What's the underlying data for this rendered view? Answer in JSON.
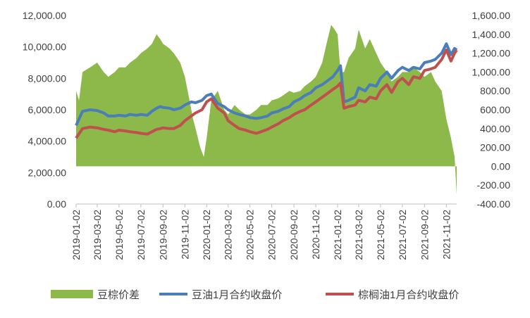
{
  "chart_data": {
    "type": "line",
    "title": "",
    "xlabel": "",
    "ylabel": "",
    "legend_position": "bottom",
    "grid": false,
    "x_tick_labels": [
      "2019-01-02",
      "2019-03-02",
      "2019-05-02",
      "2019-07-02",
      "2019-09-02",
      "2019-11-02",
      "2020-01-02",
      "2020-03-02",
      "2020-05-02",
      "2020-07-02",
      "2020-09-02",
      "2020-11-02",
      "2021-01-02",
      "2021-03-02",
      "2021-05-02",
      "2021-07-02",
      "2021-09-02",
      "2021-11-02"
    ],
    "y_left": {
      "ticks": [
        "0.00",
        "2,000.00",
        "4,000.00",
        "6,000.00",
        "8,000.00",
        "10,000.00",
        "12,000.00"
      ],
      "min": 0,
      "max": 12000
    },
    "y_right": {
      "ticks": [
        "-400.00",
        "-200.00",
        "0.00",
        "200.00",
        "400.00",
        "600.00",
        "800.00",
        "1,000.00",
        "1,200.00",
        "1,400.00",
        "1,600.00"
      ],
      "min": -400,
      "max": 1600
    },
    "series": [
      {
        "name": "豆棕价差",
        "type": "area",
        "axis": "right",
        "color": "#8DB84A",
        "x": [
          "2019-01-02",
          "2019-01-10",
          "2019-01-20",
          "2019-02-10",
          "2019-03-02",
          "2019-03-20",
          "2019-04-02",
          "2019-04-20",
          "2019-05-02",
          "2019-05-20",
          "2019-06-02",
          "2019-06-20",
          "2019-07-02",
          "2019-07-20",
          "2019-08-02",
          "2019-08-15",
          "2019-08-25",
          "2019-09-02",
          "2019-09-20",
          "2019-10-02",
          "2019-10-20",
          "2019-11-02",
          "2019-11-15",
          "2019-11-25",
          "2019-12-02",
          "2019-12-15",
          "2019-12-25",
          "2020-01-02",
          "2020-01-15",
          "2020-02-02",
          "2020-02-20",
          "2020-03-02",
          "2020-03-20",
          "2020-04-02",
          "2020-04-20",
          "2020-05-02",
          "2020-05-20",
          "2020-06-02",
          "2020-06-20",
          "2020-07-02",
          "2020-07-20",
          "2020-08-02",
          "2020-08-20",
          "2020-09-02",
          "2020-09-20",
          "2020-10-02",
          "2020-10-20",
          "2020-11-02",
          "2020-11-20",
          "2020-12-02",
          "2020-12-15",
          "2020-12-25",
          "2021-01-02",
          "2021-01-10",
          "2021-01-20",
          "2021-02-02",
          "2021-02-20",
          "2021-03-02",
          "2021-03-20",
          "2021-04-02",
          "2021-04-20",
          "2021-05-02",
          "2021-05-20",
          "2021-06-02",
          "2021-06-20",
          "2021-07-02",
          "2021-07-20",
          "2021-08-02",
          "2021-08-20",
          "2021-09-02",
          "2021-09-20",
          "2021-10-02",
          "2021-10-20",
          "2021-11-02",
          "2021-11-15",
          "2021-11-25",
          "2021-12-01"
        ],
        "values": [
          800,
          700,
          1000,
          1050,
          1100,
          1000,
          950,
          1000,
          1050,
          1050,
          1100,
          1150,
          1200,
          1250,
          1300,
          1400,
          1350,
          1300,
          1250,
          1200,
          1100,
          950,
          700,
          500,
          400,
          200,
          100,
          300,
          700,
          800,
          600,
          550,
          650,
          600,
          550,
          550,
          600,
          650,
          650,
          700,
          720,
          750,
          800,
          780,
          800,
          850,
          900,
          950,
          1100,
          1300,
          1500,
          1450,
          1400,
          1000,
          1000,
          1150,
          1250,
          1450,
          1250,
          1350,
          1200,
          1100,
          1000,
          900,
          950,
          1000,
          1000,
          1050,
          1000,
          950,
          1000,
          900,
          800,
          500,
          300,
          100,
          -300
        ]
      },
      {
        "name": "豆油1月合约收盘价",
        "type": "line",
        "axis": "left",
        "color": "#4A7EBB",
        "x": [
          "2019-01-02",
          "2019-01-20",
          "2019-02-10",
          "2019-03-02",
          "2019-03-20",
          "2019-04-02",
          "2019-04-20",
          "2019-05-02",
          "2019-05-20",
          "2019-06-02",
          "2019-06-20",
          "2019-07-02",
          "2019-07-20",
          "2019-08-02",
          "2019-08-15",
          "2019-08-25",
          "2019-09-02",
          "2019-09-20",
          "2019-10-02",
          "2019-10-20",
          "2019-11-02",
          "2019-11-20",
          "2019-12-02",
          "2019-12-20",
          "2020-01-02",
          "2020-01-15",
          "2020-02-02",
          "2020-02-20",
          "2020-03-02",
          "2020-03-20",
          "2020-04-02",
          "2020-04-20",
          "2020-05-02",
          "2020-05-20",
          "2020-06-02",
          "2020-06-20",
          "2020-07-02",
          "2020-07-20",
          "2020-08-02",
          "2020-08-20",
          "2020-09-02",
          "2020-09-20",
          "2020-10-02",
          "2020-10-20",
          "2020-11-02",
          "2020-11-20",
          "2020-12-02",
          "2020-12-20",
          "2021-01-02",
          "2021-01-10",
          "2021-01-20",
          "2021-02-02",
          "2021-02-20",
          "2021-03-02",
          "2021-03-20",
          "2021-04-02",
          "2021-04-20",
          "2021-05-02",
          "2021-05-20",
          "2021-06-02",
          "2021-06-20",
          "2021-07-02",
          "2021-07-20",
          "2021-08-02",
          "2021-08-20",
          "2021-09-02",
          "2021-09-20",
          "2021-10-02",
          "2021-10-20",
          "2021-11-02",
          "2021-11-15",
          "2021-11-25",
          "2021-12-01"
        ],
        "values": [
          5000,
          5900,
          6000,
          5950,
          5800,
          5600,
          5600,
          5650,
          5600,
          5700,
          5650,
          5700,
          5650,
          5900,
          6100,
          6200,
          6150,
          6100,
          6000,
          6100,
          6300,
          6500,
          6450,
          6600,
          6900,
          7000,
          6400,
          6200,
          6000,
          5800,
          5700,
          5600,
          5500,
          5450,
          5500,
          5600,
          5800,
          5900,
          6050,
          6200,
          6500,
          6700,
          6900,
          7100,
          7400,
          7600,
          7800,
          8100,
          8500,
          8800,
          6500,
          6600,
          6800,
          7400,
          7200,
          7600,
          7500,
          8000,
          8400,
          8000,
          8500,
          8700,
          8500,
          8700,
          8600,
          9000,
          9100,
          9200,
          9600,
          10200,
          9500,
          9900,
          9800
        ]
      },
      {
        "name": "棕榈油1月合约收盘价",
        "type": "line",
        "axis": "left",
        "color": "#C0504D",
        "x": [
          "2019-01-02",
          "2019-01-20",
          "2019-02-10",
          "2019-03-02",
          "2019-03-20",
          "2019-04-02",
          "2019-04-20",
          "2019-05-02",
          "2019-05-20",
          "2019-06-02",
          "2019-06-20",
          "2019-07-02",
          "2019-07-20",
          "2019-08-02",
          "2019-08-15",
          "2019-08-25",
          "2019-09-02",
          "2019-09-20",
          "2019-10-02",
          "2019-10-20",
          "2019-11-02",
          "2019-11-20",
          "2019-12-02",
          "2019-12-20",
          "2020-01-02",
          "2020-01-15",
          "2020-02-02",
          "2020-02-20",
          "2020-03-02",
          "2020-03-20",
          "2020-04-02",
          "2020-04-20",
          "2020-05-02",
          "2020-05-20",
          "2020-06-02",
          "2020-06-20",
          "2020-07-02",
          "2020-07-20",
          "2020-08-02",
          "2020-08-20",
          "2020-09-02",
          "2020-09-20",
          "2020-10-02",
          "2020-10-20",
          "2020-11-02",
          "2020-11-20",
          "2020-12-02",
          "2020-12-20",
          "2021-01-02",
          "2021-01-10",
          "2021-01-20",
          "2021-02-02",
          "2021-02-20",
          "2021-03-02",
          "2021-03-20",
          "2021-04-02",
          "2021-04-20",
          "2021-05-02",
          "2021-05-20",
          "2021-06-02",
          "2021-06-20",
          "2021-07-02",
          "2021-07-20",
          "2021-08-02",
          "2021-08-20",
          "2021-09-02",
          "2021-09-20",
          "2021-10-02",
          "2021-10-20",
          "2021-11-02",
          "2021-11-15",
          "2021-11-25",
          "2021-12-01"
        ],
        "values": [
          4200,
          4800,
          4900,
          4850,
          4750,
          4700,
          4600,
          4700,
          4650,
          4600,
          4550,
          4500,
          4450,
          4600,
          4750,
          4800,
          4850,
          4800,
          4800,
          5000,
          5300,
          5600,
          5800,
          6000,
          6500,
          6700,
          6100,
          5800,
          5300,
          5000,
          4800,
          4700,
          4600,
          4500,
          4600,
          4750,
          4900,
          5100,
          5300,
          5500,
          5700,
          5900,
          6000,
          6300,
          6500,
          6800,
          7000,
          7300,
          7500,
          7700,
          6100,
          6200,
          6300,
          6600,
          6500,
          6800,
          6700,
          7200,
          7600,
          7100,
          7800,
          8000,
          7600,
          8100,
          8000,
          8500,
          8600,
          8700,
          9200,
          9800,
          9100,
          9600,
          9800
        ]
      }
    ]
  }
}
